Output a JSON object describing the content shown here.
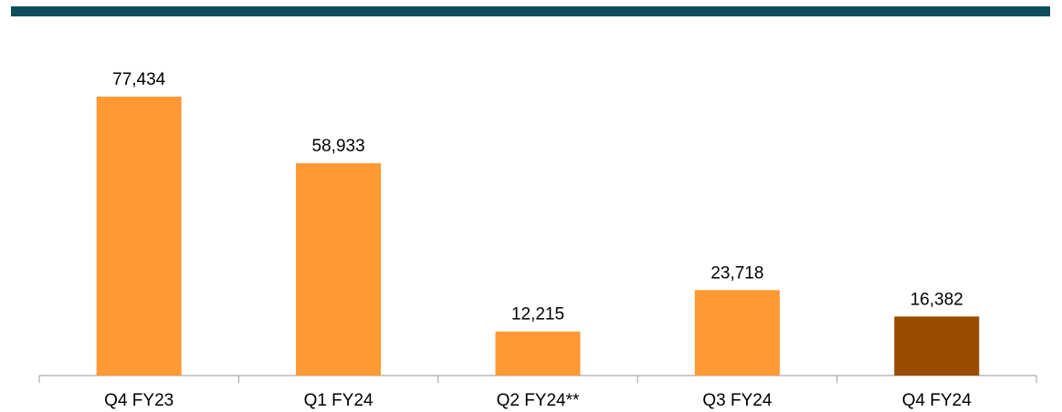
{
  "chart_data": {
    "type": "bar",
    "categories": [
      "Q4 FY23",
      "Q1 FY24",
      "Q2 FY24**",
      "Q3 FY24",
      "Q4 FY24"
    ],
    "values": [
      77434,
      58933,
      12215,
      23718,
      16382
    ],
    "value_labels": [
      "77,434",
      "58,933",
      "12,215",
      "23,718",
      "16,382"
    ],
    "colors": [
      "#ff9933",
      "#ff9933",
      "#ff9933",
      "#ff9933",
      "#994c00"
    ]
  }
}
